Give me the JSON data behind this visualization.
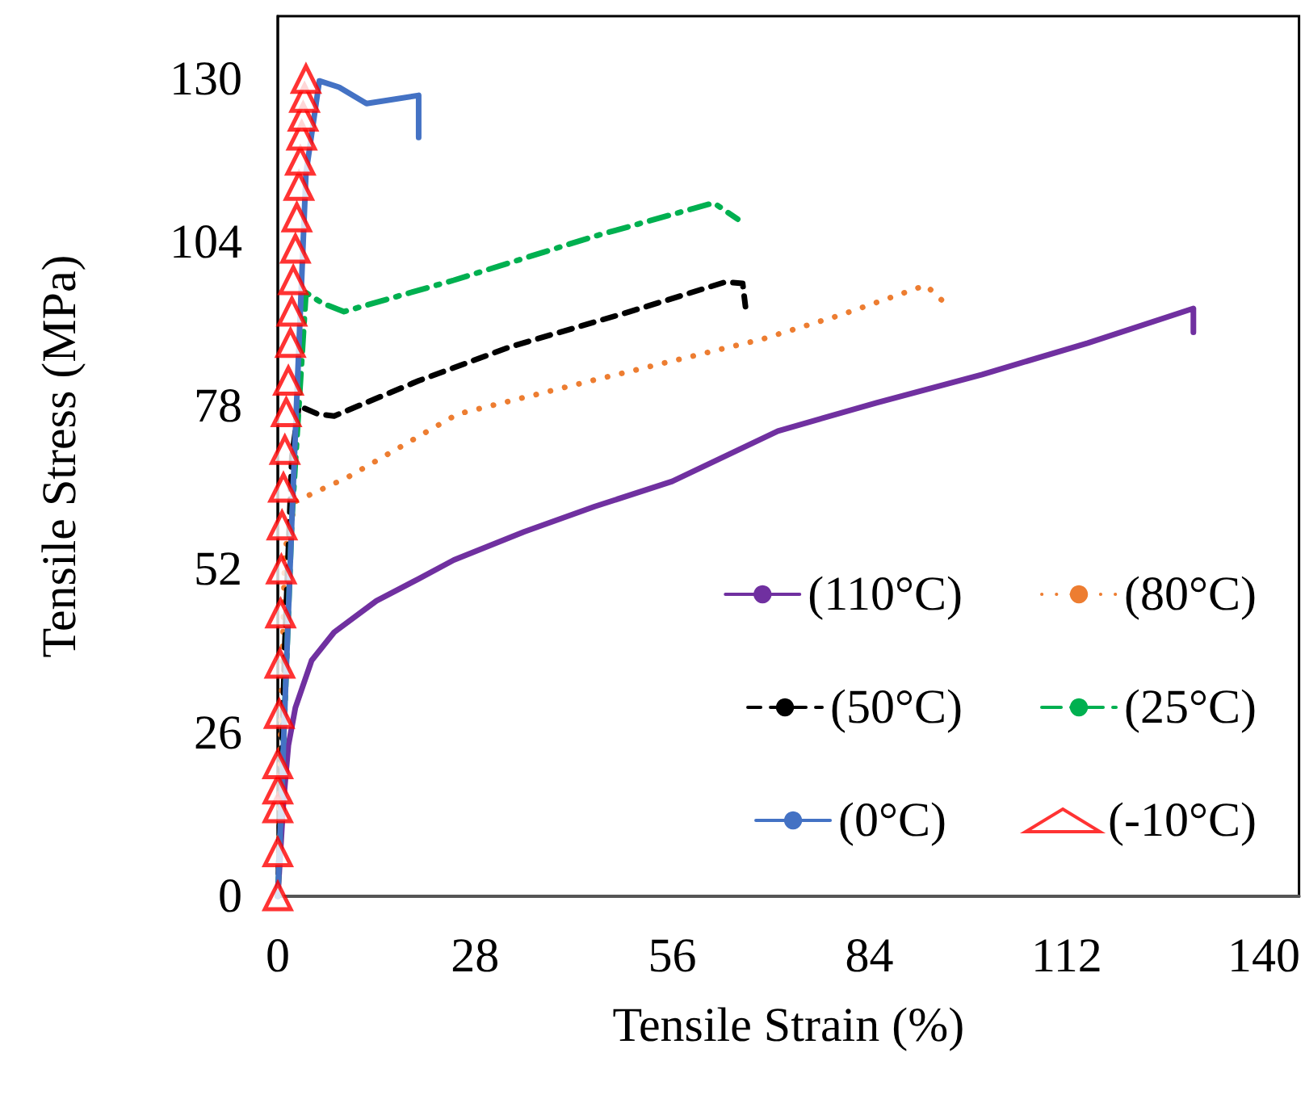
{
  "chart_data": {
    "type": "line",
    "xlabel": "Tensile Strain (%)",
    "ylabel": "Tensile Stress (MPa)",
    "xlim": [
      0,
      145
    ],
    "ylim": [
      0,
      140
    ],
    "xticks": [
      0,
      28,
      56,
      84,
      112,
      140
    ],
    "yticks": [
      0,
      26,
      52,
      78,
      104,
      130
    ],
    "grid": false,
    "legend": "bottom right",
    "series": [
      {
        "name": "(110°C)",
        "color": "#7030a0",
        "line_style": "solid",
        "marker": "none",
        "x": [
          0,
          0.8,
          1.5,
          2.5,
          4.8,
          8,
          14,
          20,
          25,
          35,
          45,
          56,
          71,
          85,
          100,
          115,
          130,
          130
        ],
        "values": [
          0,
          15,
          24,
          30,
          37.5,
          42,
          47,
          50.5,
          53.5,
          58,
          62,
          66,
          74,
          78.5,
          83,
          88,
          93.5,
          89.7
        ]
      },
      {
        "name": "(80°C)",
        "color": "#ed7d31",
        "line_style": "dotted",
        "marker": "none",
        "x": [
          0,
          0.5,
          1,
          2.5,
          10,
          25.5,
          44.5,
          68.7,
          80,
          92,
          94.3
        ],
        "values": [
          0,
          30,
          55,
          62.8,
          66.7,
          76.7,
          82,
          88.6,
          92.5,
          97.2,
          94.8
        ]
      },
      {
        "name": "(50°C)",
        "color": "#000000",
        "line_style": "dashed",
        "marker": "none",
        "x": [
          0,
          1,
          2,
          3,
          5.7,
          8,
          20,
          33,
          50,
          63.5,
          66,
          66.4
        ],
        "values": [
          0,
          40,
          70,
          78,
          76.7,
          76.4,
          82,
          87.4,
          93,
          97.7,
          97.5,
          93.8
        ]
      },
      {
        "name": "(25°C)",
        "color": "#00b050",
        "line_style": "dashdot",
        "marker": "none",
        "x": [
          0,
          2,
          4,
          6.4,
          9.4,
          25,
          45,
          61.9,
          65.3
        ],
        "values": [
          0,
          60,
          96,
          94.3,
          93,
          98,
          105,
          110.3,
          107.7
        ]
      },
      {
        "name": "(0°C)",
        "color": "#4472c4",
        "line_style": "solid",
        "marker": "none",
        "x": [
          0,
          2,
          4,
          5.9,
          8.7,
          12.6,
          20,
          20
        ],
        "values": [
          0,
          60,
          115,
          129.7,
          128.7,
          126.1,
          127.4,
          120.7
        ]
      },
      {
        "name": "(-10°C)",
        "type": "scatter",
        "color": "#ff0000",
        "marker": "triangle",
        "x": [
          0,
          0,
          0,
          0,
          0,
          0.2,
          0.3,
          0.4,
          0.5,
          0.6,
          0.8,
          1,
          1.2,
          1.5,
          1.8,
          2,
          2.2,
          2.5,
          2.7,
          3,
          3.2,
          3.4,
          3.6,
          3.8,
          4
        ],
        "values": [
          0,
          7,
          14,
          17,
          21,
          29,
          37,
          45,
          52,
          59,
          65,
          71,
          77,
          82,
          88,
          93,
          98,
          103,
          108,
          113,
          117,
          121,
          124,
          127,
          130
        ]
      }
    ]
  }
}
